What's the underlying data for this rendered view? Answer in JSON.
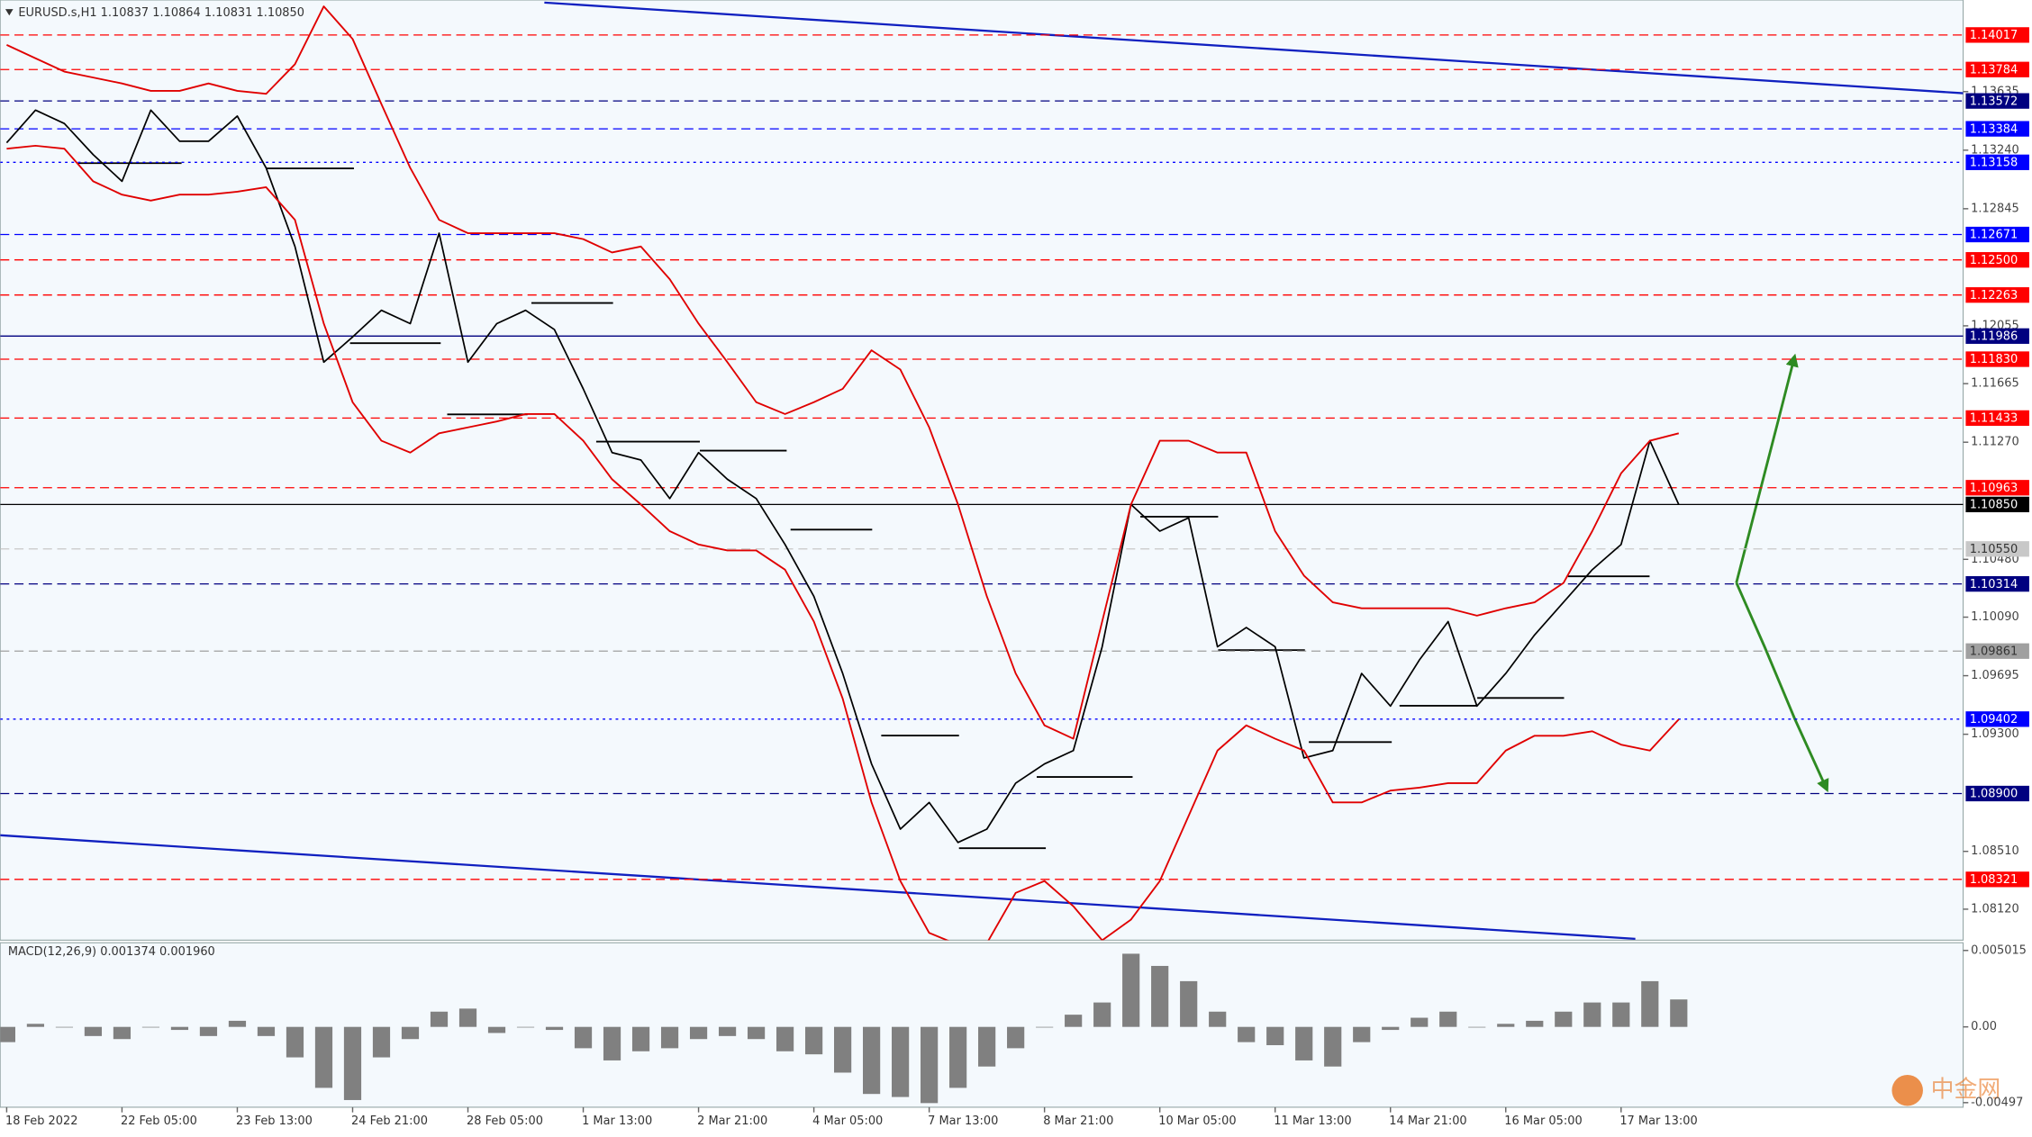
{
  "chart_data": [
    {
      "type": "line",
      "title": "EURUSD.s,H1  1.10837 1.10864 1.10831 1.10850",
      "categories": [
        "18 Feb 2022",
        null,
        null,
        null,
        "22 Feb 05:00",
        null,
        null,
        null,
        "23 Feb 13:00",
        null,
        null,
        null,
        "24 Feb 21:00",
        null,
        null,
        null,
        "28 Feb 05:00",
        null,
        null,
        null,
        "1 Mar 13:00",
        null,
        null,
        null,
        "2 Mar 21:00",
        null,
        null,
        null,
        "4 Mar 05:00",
        null,
        null,
        null,
        "7 Mar 13:00",
        null,
        null,
        null,
        "8 Mar 21:00",
        null,
        null,
        null,
        "10 Mar 05:00",
        null,
        null,
        null,
        "11 Mar 13:00",
        null,
        null,
        null,
        "14 Mar 21:00",
        null,
        null,
        null,
        "16 Mar 05:00",
        null,
        null,
        null,
        "17 Mar 13:00",
        null,
        null
      ],
      "series": [
        {
          "color": "#000000",
          "values": [
            1.1329,
            1.1351,
            1.1342,
            1.1321,
            1.1303,
            1.1351,
            1.133,
            1.133,
            1.1347,
            1.1312,
            1.1259,
            1.1181,
            1.1198,
            1.1216,
            1.1207,
            1.1268,
            1.1181,
            1.1207,
            1.1216,
            1.1203,
            1.1163,
            1.112,
            1.1115,
            1.1089,
            1.112,
            1.1102,
            1.1089,
            1.1058,
            1.1023,
            1.0971,
            1.091,
            1.0866,
            1.0884,
            1.0857,
            1.0866,
            1.0897,
            1.091,
            1.0919,
            1.0989,
            1.1085,
            1.1067,
            1.1076,
            1.0989,
            1.1002,
            1.0989,
            1.0914,
            1.0919,
            1.0971,
            1.0949,
            1.098,
            1.1006,
            1.0949,
            1.0971,
            1.0997,
            1.1019,
            1.1041,
            1.1058,
            1.1128,
            1.1085
          ]
        },
        {
          "color": "#e00000",
          "values": [
            1.1395,
            1.1386,
            1.1377,
            1.1373,
            1.1369,
            1.1364,
            1.1364,
            1.1369,
            1.1364,
            1.1362,
            1.1382,
            1.1421,
            1.1399,
            1.1355,
            1.1312,
            1.1277,
            1.1268,
            1.1268,
            1.1268,
            1.1268,
            1.1264,
            1.1255,
            1.1259,
            1.1237,
            1.1207,
            1.1181,
            1.1154,
            1.1146,
            1.1154,
            1.1163,
            1.1189,
            1.1176,
            1.1137,
            1.1085,
            1.1023,
            1.0971,
            1.0936,
            1.0927,
            1.1006,
            1.1085,
            1.1128,
            1.1128,
            1.112,
            1.112,
            1.1067,
            1.1037,
            1.1019,
            1.1015,
            1.1015,
            1.1015,
            1.1015,
            1.101,
            1.1015,
            1.1019,
            1.1032,
            1.1067,
            1.1106,
            1.1128,
            1.1133
          ]
        },
        {
          "color": "#e00000",
          "values": [
            1.1325,
            1.1327,
            1.1325,
            1.1303,
            1.1294,
            1.129,
            1.1294,
            1.1294,
            1.1296,
            1.1299,
            1.1277,
            1.1207,
            1.1154,
            1.1128,
            1.112,
            1.1133,
            1.1137,
            1.1141,
            1.1146,
            1.1146,
            1.1128,
            1.1102,
            1.1085,
            1.1067,
            1.1058,
            1.1054,
            1.1054,
            1.1041,
            1.1006,
            1.0954,
            1.0884,
            1.0831,
            1.0796,
            1.0788,
            1.0789,
            1.0823,
            1.0831,
            1.0814,
            1.0791,
            1.0805,
            1.0831,
            1.0875,
            1.0919,
            1.0936,
            1.0927,
            1.0919,
            1.0884,
            1.0884,
            1.0892,
            1.0894,
            1.0897,
            1.0897,
            1.0919,
            1.0929,
            1.0929,
            1.0932,
            1.0923,
            1.0919,
            1.094
          ]
        }
      ],
      "ylim": [
        1.07911,
        1.14253
      ],
      "yticks": [
        {
          "value": 1.13635,
          "label": "1.13635"
        },
        {
          "value": 1.1324,
          "label": "1.13240"
        },
        {
          "value": 1.12845,
          "label": "1.12845"
        },
        {
          "value": 1.12055,
          "label": "1.12055"
        },
        {
          "value": 1.11665,
          "label": "1.11665"
        },
        {
          "value": 1.1127,
          "label": "1.11270"
        },
        {
          "value": 1.1048,
          "label": "1.10480"
        },
        {
          "value": 1.1009,
          "label": "1.10090"
        },
        {
          "value": 1.09695,
          "label": "1.09695"
        },
        {
          "value": 1.093,
          "label": "1.09300"
        },
        {
          "value": 1.0851,
          "label": "1.08510"
        },
        {
          "value": 1.0812,
          "label": "1.08120"
        }
      ],
      "levels": [
        {
          "value": 1.14017,
          "label": "1.14017",
          "color": "#ff0000",
          "style": "dashed"
        },
        {
          "value": 1.13784,
          "label": "1.13784",
          "color": "#ff0000",
          "style": "dashed"
        },
        {
          "value": 1.13572,
          "label": "1.13572",
          "color": "#000080",
          "style": "dashed"
        },
        {
          "value": 1.13384,
          "label": "1.13384",
          "color": "#0000ff",
          "style": "dashed"
        },
        {
          "value": 1.13158,
          "label": "1.13158",
          "color": "#0000ff",
          "style": "dotted"
        },
        {
          "value": 1.12671,
          "label": "1.12671",
          "color": "#0000ff",
          "style": "dashed"
        },
        {
          "value": 1.125,
          "label": "1.12500",
          "color": "#ff0000",
          "style": "dashed"
        },
        {
          "value": 1.12263,
          "label": "1.12263",
          "color": "#ff0000",
          "style": "dashed"
        },
        {
          "value": 1.11986,
          "label": "1.11986",
          "color": "#000080",
          "style": "solid"
        },
        {
          "value": 1.1183,
          "label": "1.11830",
          "color": "#ff0000",
          "style": "dashed"
        },
        {
          "value": 1.11433,
          "label": "1.11433",
          "color": "#ff0000",
          "style": "dashed"
        },
        {
          "value": 1.10963,
          "label": "1.10963",
          "color": "#ff0000",
          "style": "dashed"
        },
        {
          "value": 1.1085,
          "label": "1.10850",
          "color": "#000000",
          "style": "solid"
        },
        {
          "value": 1.1055,
          "label": "1.10550",
          "color": "#c8c8c8",
          "style": "dashed"
        },
        {
          "value": 1.10314,
          "label": "1.10314",
          "color": "#000080",
          "style": "dashed"
        },
        {
          "value": 1.09861,
          "label": "1.09861",
          "color": "#a0a0a0",
          "style": "dashed"
        },
        {
          "value": 1.09402,
          "label": "1.09402",
          "color": "#0000ff",
          "style": "dotted"
        },
        {
          "value": 1.089,
          "label": "1.08900",
          "color": "#000080",
          "style": "dashed"
        },
        {
          "value": 1.08321,
          "label": "1.08321",
          "color": "#ff0000",
          "style": "dashed"
        }
      ]
    },
    {
      "type": "bar",
      "title": "MACD(12,26,9) 0.001374 0.001960",
      "color": "#808080",
      "values": [
        -0.001,
        0.0002,
        0.0,
        -0.0006,
        -0.0008,
        0.0,
        -0.0002,
        -0.0006,
        0.0004,
        -0.0006,
        -0.002,
        -0.004,
        -0.0048,
        -0.002,
        -0.0008,
        0.001,
        0.0012,
        -0.0004,
        0.0,
        -0.0002,
        -0.0014,
        -0.0022,
        -0.0016,
        -0.0014,
        -0.0008,
        -0.0006,
        -0.0008,
        -0.0016,
        -0.0018,
        -0.003,
        -0.0044,
        -0.0046,
        -0.005,
        -0.004,
        -0.0026,
        -0.0014,
        0.0,
        0.0008,
        0.0016,
        0.0048,
        0.004,
        0.003,
        0.001,
        -0.001,
        -0.0012,
        -0.0022,
        -0.0026,
        -0.001,
        -0.0002,
        0.0006,
        0.001,
        0.0,
        0.0002,
        0.0004,
        0.001,
        0.0016,
        0.0016,
        0.003,
        0.0018
      ],
      "ylim": [
        -0.00527,
        0.00552
      ],
      "yticks": [
        0.005015,
        {
          "value": 0,
          "label": "0.00"
        },
        -0.00497
      ]
    }
  ],
  "watermark": "中金网"
}
